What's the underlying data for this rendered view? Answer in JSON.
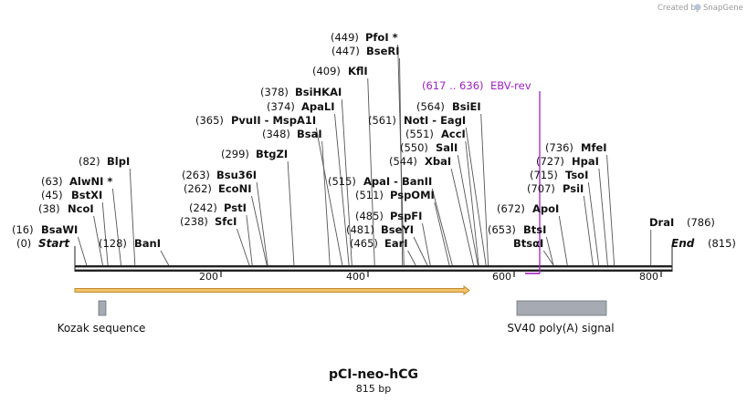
{
  "credit": {
    "prefix": "Created by",
    "brand": "SnapGene"
  },
  "title": "pCI-neo-hCG",
  "length_label": "815 bp",
  "sequence": {
    "start_bp": 0,
    "end_bp": 815,
    "start_label": "Start",
    "end_label": "End",
    "end_pos_text": "(815)",
    "start_pos_text": "(0)"
  },
  "colors": {
    "backbone": "#222222",
    "primer": "#a020c8",
    "orf_fill": "#f2c26a",
    "orf_stroke": "#c08a2a",
    "feature_box": "#a6abb3"
  },
  "ticks": [
    "200",
    "400",
    "600",
    "800"
  ],
  "enzymes": [
    {
      "name": "BsaWI",
      "pos_text": "(16)",
      "bp": 16
    },
    {
      "name": "NcoI",
      "pos_text": "(38)",
      "bp": 38
    },
    {
      "name": "BstXI",
      "pos_text": "(45)",
      "bp": 45
    },
    {
      "name": "AlwNI *",
      "pos_text": "(63)",
      "bp": 63
    },
    {
      "name": "BlpI",
      "pos_text": "(82)",
      "bp": 82
    },
    {
      "name": "BanI",
      "pos_text": "(128)",
      "bp": 128
    },
    {
      "name": "SfcI",
      "pos_text": "(238)",
      "bp": 238
    },
    {
      "name": "PstI",
      "pos_text": "(242)",
      "bp": 242
    },
    {
      "name": "EcoNI",
      "pos_text": "(262)",
      "bp": 262
    },
    {
      "name": "Bsu36I",
      "pos_text": "(263)",
      "bp": 263
    },
    {
      "name": "BtgZI",
      "pos_text": "(299)",
      "bp": 299
    },
    {
      "name": "BsaI",
      "pos_text": "(348)",
      "bp": 348
    },
    {
      "name": "PvuII - MspA1I",
      "pos_text": "(365)",
      "bp": 365
    },
    {
      "name": "ApaLI",
      "pos_text": "(374)",
      "bp": 374
    },
    {
      "name": "BsiHKAI",
      "pos_text": "(378)",
      "bp": 378
    },
    {
      "name": "KflI",
      "pos_text": "(409)",
      "bp": 409
    },
    {
      "name": "BseRI",
      "pos_text": "(447)",
      "bp": 447
    },
    {
      "name": "PfoI *",
      "pos_text": "(449)",
      "bp": 449
    },
    {
      "name": "EarI",
      "pos_text": "(465)",
      "bp": 465
    },
    {
      "name": "BseYI",
      "pos_text": "(481)",
      "bp": 481
    },
    {
      "name": "PspFI",
      "pos_text": "(485)",
      "bp": 485
    },
    {
      "name": "PspOMI",
      "pos_text": "(511)",
      "bp": 511
    },
    {
      "name": "ApaI - BanII",
      "pos_text": "(515)",
      "bp": 515
    },
    {
      "name": "XbaI",
      "pos_text": "(544)",
      "bp": 544
    },
    {
      "name": "SalI",
      "pos_text": "(550)",
      "bp": 550
    },
    {
      "name": "AccI",
      "pos_text": "(551)",
      "bp": 551
    },
    {
      "name": "NotI - EagI",
      "pos_text": "(561)",
      "bp": 561
    },
    {
      "name": "BsiEI",
      "pos_text": "(564)",
      "bp": 564
    },
    {
      "name": "BtsαI",
      "pos_text": "",
      "bp": 653
    },
    {
      "name": "BtsI",
      "pos_text": "(653)",
      "bp": 653
    },
    {
      "name": "ApoI",
      "pos_text": "(672)",
      "bp": 672
    },
    {
      "name": "PsiI",
      "pos_text": "(707)",
      "bp": 707
    },
    {
      "name": "TsoI",
      "pos_text": "(715)",
      "bp": 715
    },
    {
      "name": "HpaI",
      "pos_text": "(727)",
      "bp": 727
    },
    {
      "name": "MfeI",
      "pos_text": "(736)",
      "bp": 736
    },
    {
      "name": "DraI",
      "pos_text": "(786)",
      "bp": 786
    }
  ],
  "primer": {
    "name": "EBV-rev",
    "range_text": "(617 .. 636)",
    "start_bp": 617,
    "end_bp": 636
  },
  "features": [
    {
      "name": "Kozak sequence",
      "start_bp": 38,
      "end_bp": 48
    },
    {
      "name": "SV40 poly(A) signal",
      "start_bp": 597,
      "end_bp": 719
    }
  ],
  "orf": {
    "start_bp": 0,
    "end_bp": 540
  }
}
